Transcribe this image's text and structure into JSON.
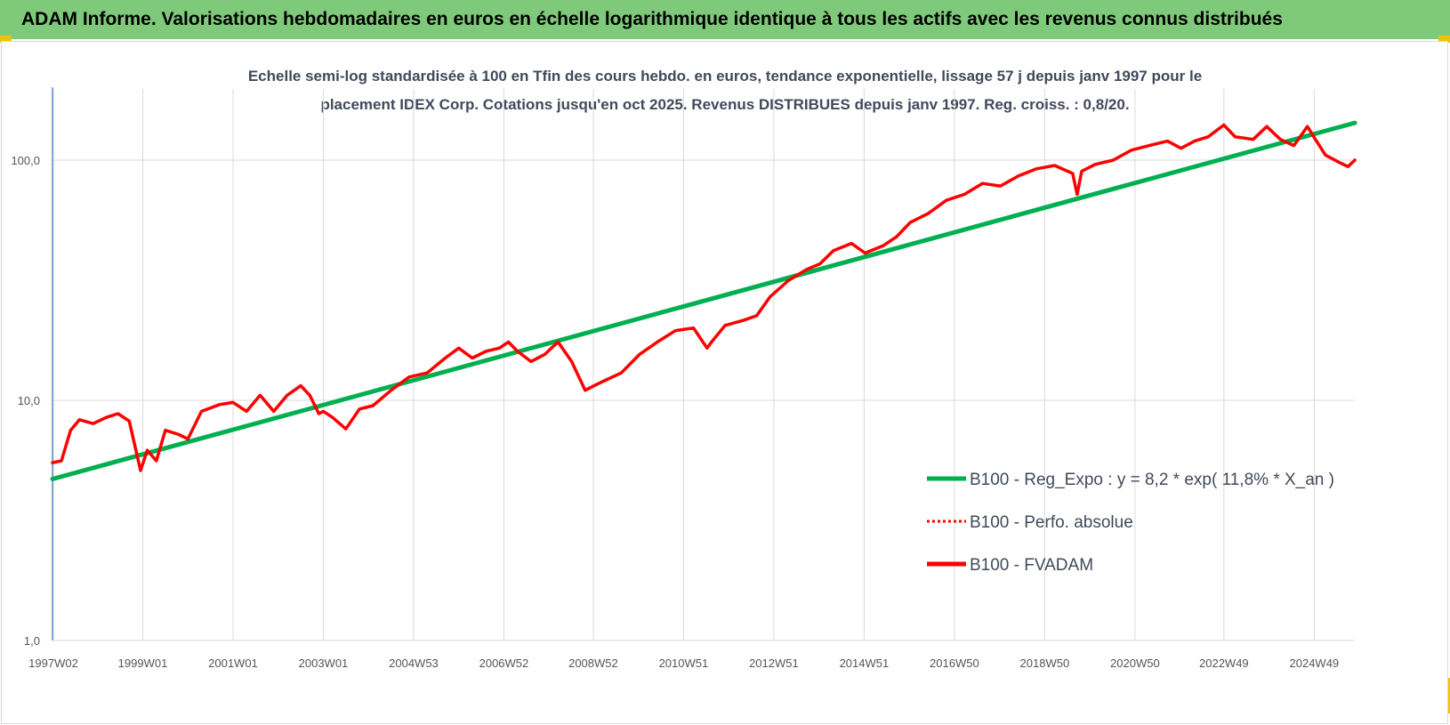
{
  "header": {
    "title": "ADAM Informe. Valorisations hebdomadaires en euros en échelle logarithmique identique à tous les actifs avec les revenus connus distribués"
  },
  "chart_data": {
    "type": "line",
    "title_line1": "Echelle semi-log standardisée à 100 en Tfin des cours hebdo. en euros, tendance exponentielle, lissage 57 j depuis janv 1997 pour le",
    "title_line2": "placement IDEX Corp. Cotations jusqu'en oct 2025. Revenus DISTRIBUES depuis janv 1997.  Reg. croiss. : 0,8/20.",
    "yscale": "log",
    "ylim": [
      1,
      180
    ],
    "xlim": [
      1997.0,
      2025.85
    ],
    "grid": true,
    "legend_position": "bottom-right",
    "y_ticks": [
      {
        "value": 100,
        "label": "100,0"
      },
      {
        "value": 10,
        "label": "10,0"
      },
      {
        "value": 1,
        "label": "1,0"
      }
    ],
    "x_ticks": [
      {
        "value": 1997.02,
        "label": "1997W02"
      },
      {
        "value": 1999.0,
        "label": "1999W01"
      },
      {
        "value": 2001.0,
        "label": "2001W01"
      },
      {
        "value": 2003.0,
        "label": "2003W01"
      },
      {
        "value": 2005.0,
        "label": "2004W53"
      },
      {
        "value": 2007.0,
        "label": "2006W52"
      },
      {
        "value": 2008.98,
        "label": "2008W52"
      },
      {
        "value": 2010.98,
        "label": "2010W51"
      },
      {
        "value": 2012.98,
        "label": "2012W51"
      },
      {
        "value": 2014.98,
        "label": "2014W51"
      },
      {
        "value": 2016.98,
        "label": "2016W50"
      },
      {
        "value": 2018.98,
        "label": "2018W50"
      },
      {
        "value": 2020.98,
        "label": "2020W50"
      },
      {
        "value": 2022.95,
        "label": "2022W49"
      },
      {
        "value": 2024.95,
        "label": "2024W49"
      }
    ],
    "series": [
      {
        "name": "B100 - Reg_Expo : y = 8,2 * exp( 11,8% *  X_an )",
        "color": "#00b050",
        "style": "solid",
        "x": [
          1997.0,
          2025.85
        ],
        "y": [
          4.7,
          143
        ]
      },
      {
        "name": "B100 - Perfo. absolue",
        "color": "#ff0000",
        "style": "dotted",
        "x": [],
        "y": []
      },
      {
        "name": "B100 - FVADAM",
        "color": "#ff0000",
        "style": "solid",
        "x": [
          1997.0,
          1997.2,
          1997.4,
          1997.6,
          1997.9,
          1998.2,
          1998.45,
          1998.7,
          1998.95,
          1999.1,
          1999.3,
          1999.5,
          1999.8,
          2000.0,
          2000.3,
          2000.7,
          2001.0,
          2001.3,
          2001.6,
          2001.9,
          2002.2,
          2002.5,
          2002.7,
          2002.9,
          2003.0,
          2003.2,
          2003.5,
          2003.8,
          2004.1,
          2004.5,
          2004.9,
          2005.3,
          2005.7,
          2006.0,
          2006.3,
          2006.6,
          2006.9,
          2007.1,
          2007.3,
          2007.6,
          2007.9,
          2008.2,
          2008.5,
          2008.8,
          2009.0,
          2009.2,
          2009.6,
          2010.0,
          2010.4,
          2010.8,
          2011.2,
          2011.5,
          2011.6,
          2011.9,
          2012.3,
          2012.6,
          2012.9,
          2013.3,
          2013.7,
          2014.0,
          2014.3,
          2014.7,
          2015.0,
          2015.4,
          2015.7,
          2016.0,
          2016.4,
          2016.8,
          2017.2,
          2017.6,
          2018.0,
          2018.4,
          2018.8,
          2019.2,
          2019.6,
          2019.7,
          2019.8,
          2020.1,
          2020.5,
          2020.9,
          2021.3,
          2021.7,
          2022.0,
          2022.3,
          2022.6,
          2022.95,
          2023.2,
          2023.6,
          2023.9,
          2024.2,
          2024.5,
          2024.8,
          2025.0,
          2025.2,
          2025.5,
          2025.7,
          2025.85
        ],
        "y": [
          5.5,
          5.6,
          7.5,
          8.3,
          8.0,
          8.5,
          8.8,
          8.2,
          5.1,
          6.2,
          5.6,
          7.5,
          7.2,
          6.9,
          9.0,
          9.6,
          9.8,
          9.0,
          10.5,
          9.0,
          10.5,
          11.5,
          10.5,
          8.8,
          9.0,
          8.5,
          7.6,
          9.2,
          9.5,
          11.0,
          12.5,
          13.0,
          15.0,
          16.5,
          15.0,
          16.0,
          16.5,
          17.5,
          16.0,
          14.5,
          15.5,
          17.5,
          14.5,
          11.0,
          11.5,
          12.0,
          13.0,
          15.5,
          17.5,
          19.5,
          20.0,
          16.5,
          17.5,
          20.5,
          21.5,
          22.5,
          27.0,
          31.5,
          35.0,
          37.0,
          42.0,
          45.0,
          41.0,
          44.0,
          48.0,
          55.0,
          60.0,
          68.0,
          72.0,
          80.0,
          78.0,
          86.0,
          92.0,
          95.0,
          88.0,
          72.0,
          90.0,
          96.0,
          100.0,
          110.0,
          115.0,
          120.0,
          112.0,
          120.0,
          125.0,
          140.0,
          125.0,
          122.0,
          138.0,
          122.0,
          115.0,
          138.0,
          120.0,
          105.0,
          98.0,
          94.0,
          100.0
        ]
      }
    ]
  }
}
